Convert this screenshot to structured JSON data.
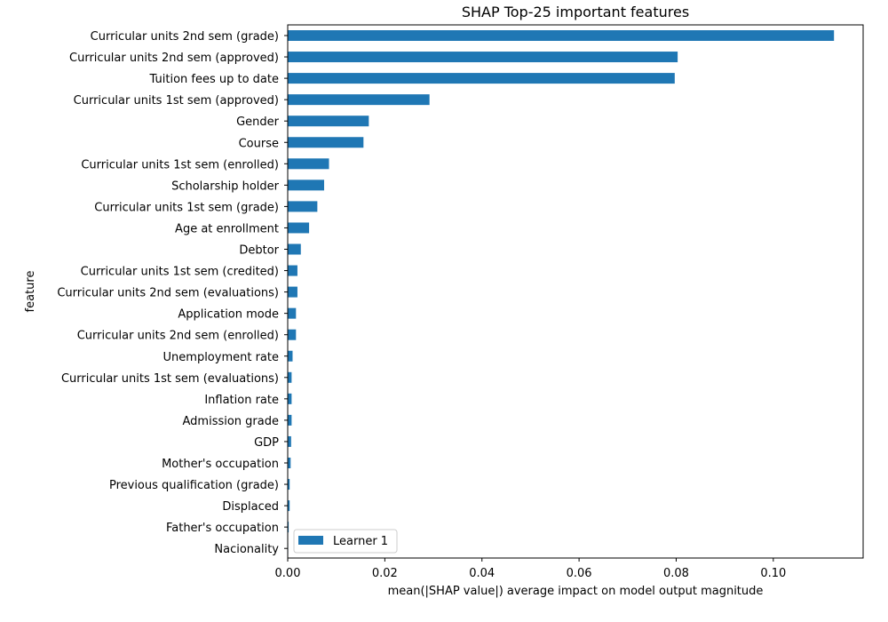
{
  "chart_data": {
    "type": "bar",
    "orientation": "horizontal",
    "title": "SHAP Top-25 important features",
    "xlabel": "mean(|SHAP value|) average impact on model output magnitude",
    "ylabel": "feature",
    "xlim": [
      0,
      0.1185
    ],
    "xticks": [
      0.0,
      0.02,
      0.04,
      0.06,
      0.08,
      0.1
    ],
    "xtick_labels": [
      "0.00",
      "0.02",
      "0.04",
      "0.06",
      "0.08",
      "0.10"
    ],
    "grid": false,
    "legend_position": "lower-left",
    "categories": [
      "Curricular units 2nd sem (grade)",
      "Curricular units 2nd sem (approved)",
      "Tuition fees up to date",
      "Curricular units 1st sem (approved)",
      "Gender",
      "Course",
      "Curricular units 1st sem (enrolled)",
      "Scholarship holder",
      "Curricular units 1st sem (grade)",
      "Age at enrollment",
      "Debtor",
      "Curricular units 1st sem (credited)",
      "Curricular units 2nd sem (evaluations)",
      "Application mode",
      "Curricular units 2nd sem (enrolled)",
      "Unemployment rate",
      "Curricular units 1st sem (evaluations)",
      "Inflation rate",
      "Admission grade",
      "GDP",
      "Mother's occupation",
      "Previous qualification (grade)",
      "Displaced",
      "Father's occupation",
      "Nacionality"
    ],
    "series": [
      {
        "name": "Learner 1",
        "color": "#1f77b4",
        "values": [
          0.1125,
          0.0803,
          0.0797,
          0.0292,
          0.0167,
          0.0156,
          0.0085,
          0.0075,
          0.0061,
          0.0044,
          0.0027,
          0.002,
          0.002,
          0.0017,
          0.0017,
          0.001,
          0.0008,
          0.0008,
          0.0008,
          0.0007,
          0.0006,
          0.0004,
          0.0004,
          0.0002,
          0.0001
        ]
      }
    ]
  }
}
